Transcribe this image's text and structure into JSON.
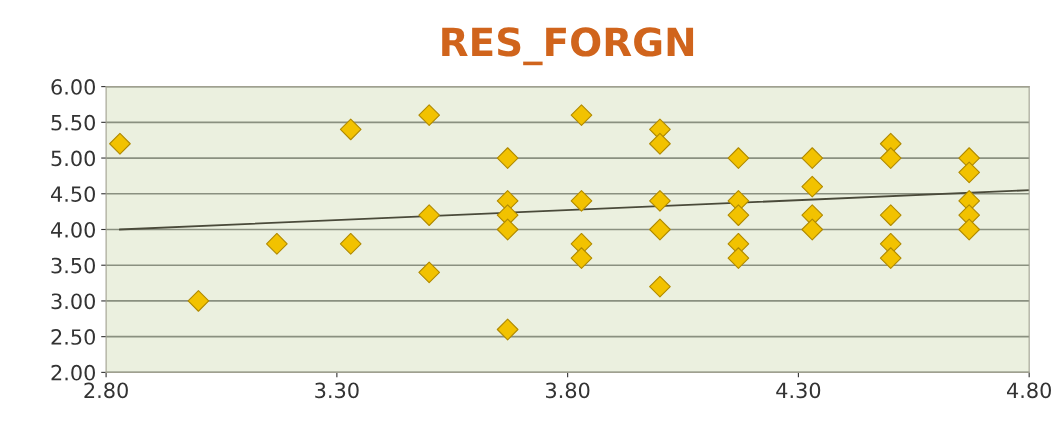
{
  "chart_data": {
    "type": "scatter",
    "title": "RES_FORGN",
    "series": [
      {
        "color": "#f2c200",
        "marker": "diamond",
        "x": [
          2.83,
          3.0,
          3.17,
          3.33,
          3.33,
          3.5,
          3.5,
          3.5,
          3.67,
          3.67,
          3.67,
          3.67,
          3.67,
          3.83,
          3.83,
          3.83,
          3.83,
          4.0,
          4.0,
          4.0,
          4.0,
          4.0,
          4.17,
          4.17,
          4.17,
          4.17,
          4.17,
          4.33,
          4.33,
          4.33,
          4.33,
          4.5,
          4.5,
          4.5,
          4.5,
          4.5,
          4.67,
          4.67,
          4.67,
          4.67,
          4.67
        ],
        "values": [
          5.2,
          3.0,
          3.8,
          5.4,
          3.8,
          5.6,
          4.2,
          3.4,
          5.0,
          4.4,
          4.2,
          4.0,
          2.6,
          5.6,
          4.4,
          3.8,
          3.6,
          5.4,
          5.2,
          4.4,
          4.0,
          3.2,
          5.0,
          4.4,
          4.2,
          3.8,
          3.6,
          5.0,
          4.6,
          4.2,
          4.0,
          5.2,
          5.0,
          4.2,
          3.8,
          3.6,
          5.0,
          4.8,
          4.4,
          4.2,
          4.0
        ]
      },
      {
        "type": "line",
        "color": "#4a4a3a",
        "marker": "none",
        "x": [
          2.83,
          4.8
        ],
        "values": [
          4.0,
          4.55
        ]
      }
    ],
    "xlim": [
      2.8,
      4.8
    ],
    "xticks": [
      {
        "value": 2.8,
        "label": "2.80"
      },
      {
        "value": 3.3,
        "label": "3.30"
      },
      {
        "value": 3.8,
        "label": "3.80"
      },
      {
        "value": 4.3,
        "label": "4.30"
      },
      {
        "value": 4.8,
        "label": "4.80"
      }
    ],
    "ylim": [
      2.0,
      6.0
    ],
    "yticks": [
      {
        "value": 2.0,
        "label": "2.00"
      },
      {
        "value": 2.5,
        "label": "2.50"
      },
      {
        "value": 3.0,
        "label": "3.00"
      },
      {
        "value": 3.5,
        "label": "3.50"
      },
      {
        "value": 4.0,
        "label": "4.00"
      },
      {
        "value": 4.5,
        "label": "4.50"
      },
      {
        "value": 5.0,
        "label": "5.00"
      },
      {
        "value": 5.5,
        "label": "5.50"
      },
      {
        "value": 6.0,
        "label": "6.00"
      }
    ],
    "grid": "y",
    "legend": false
  }
}
